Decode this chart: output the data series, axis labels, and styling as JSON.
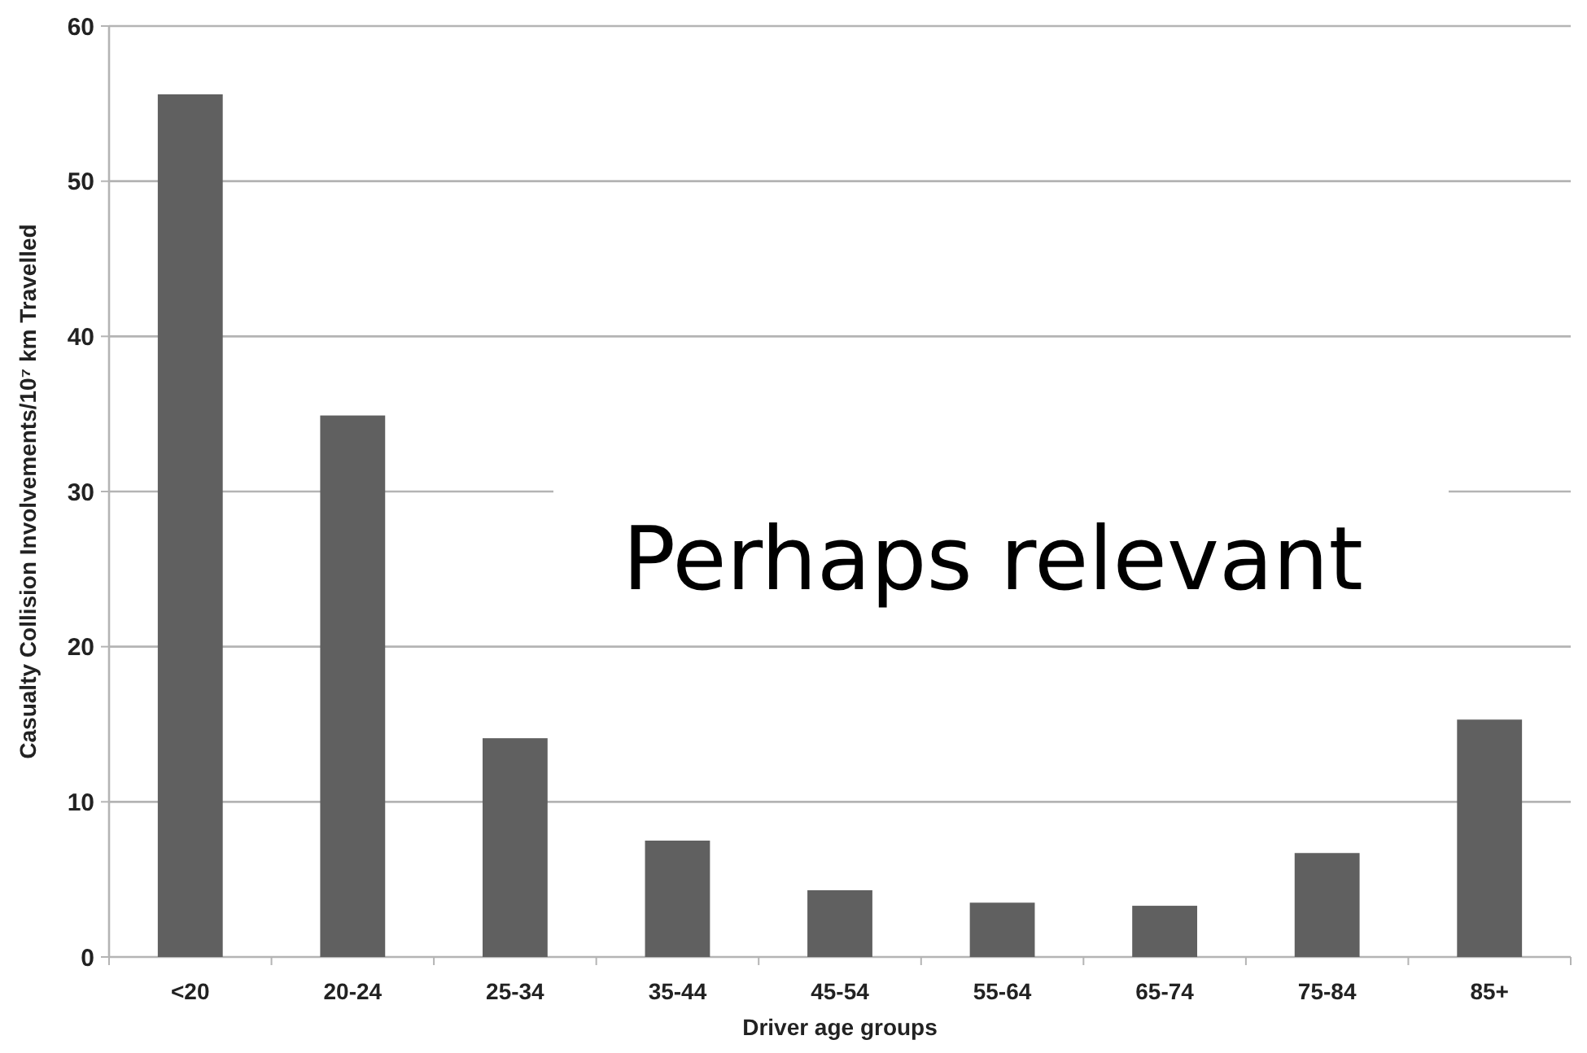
{
  "chart_data": {
    "type": "bar",
    "xlabel": "Driver age groups",
    "ylabel": "Casualty Collision Involvements/10⁷ km Travelled",
    "categories": [
      "<20",
      "20-24",
      "25-34",
      "35-44",
      "45-54",
      "55-64",
      "65-74",
      "75-84",
      "85+"
    ],
    "values": [
      55.6,
      34.9,
      14.1,
      7.5,
      4.3,
      3.5,
      3.3,
      6.7,
      15.3
    ],
    "color": "#606060",
    "ylim": [
      0,
      60
    ],
    "yticks": [
      0,
      10,
      20,
      30,
      40,
      50,
      60
    ],
    "grid": "y",
    "annotations": [
      "Perhaps relevant"
    ]
  }
}
